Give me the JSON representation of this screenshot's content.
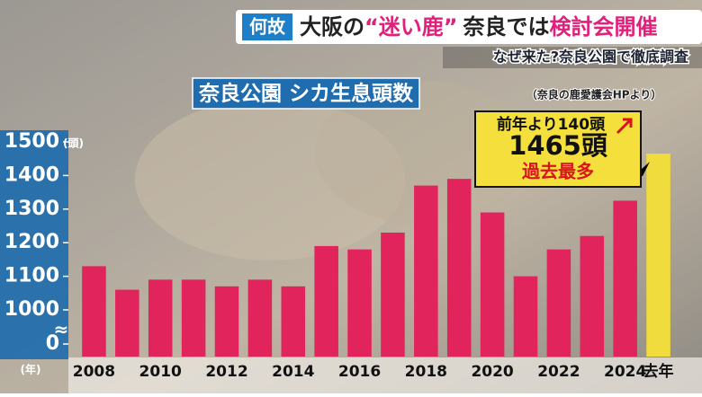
{
  "chart_data": {
    "type": "bar",
    "tag": "何故",
    "headline": [
      "大阪の",
      "“迷い鹿”",
      "奈良では",
      "検討会開催"
    ],
    "subtitle": "なぜ来た?奈良公園で徹底調査",
    "title": "奈良公園 シカ生息頭数",
    "source": "（奈良の鹿愛護会HPより）",
    "y_unit": "(頭)",
    "x_unit": "(年)",
    "callout": [
      "前年より140頭",
      "1465頭",
      "過去最多"
    ],
    "categories": [
      "2008",
      null,
      "2010",
      null,
      "2012",
      null,
      "2014",
      null,
      "2016",
      null,
      "2018",
      null,
      "2020",
      null,
      "2022",
      null,
      "2024",
      "去年"
    ],
    "values": [
      1130,
      1060,
      1090,
      1090,
      1070,
      1090,
      1070,
      1190,
      1180,
      1230,
      1370,
      1390,
      1290,
      1100,
      1180,
      1220,
      1325,
      1465
    ],
    "colors": [
      "#e2245c",
      "#e2245c",
      "#e2245c",
      "#e2245c",
      "#e2245c",
      "#e2245c",
      "#e2245c",
      "#e2245c",
      "#e2245c",
      "#e2245c",
      "#e2245c",
      "#e2245c",
      "#e2245c",
      "#e2245c",
      "#e2245c",
      "#e2245c",
      "#e2245c",
      "#f0dc3c"
    ],
    "ylim": [
      1000,
      1500
    ],
    "yticks": [
      0,
      1000,
      1100,
      1200,
      1300,
      1400,
      1500
    ],
    "axis_break": true,
    "grid": false
  }
}
